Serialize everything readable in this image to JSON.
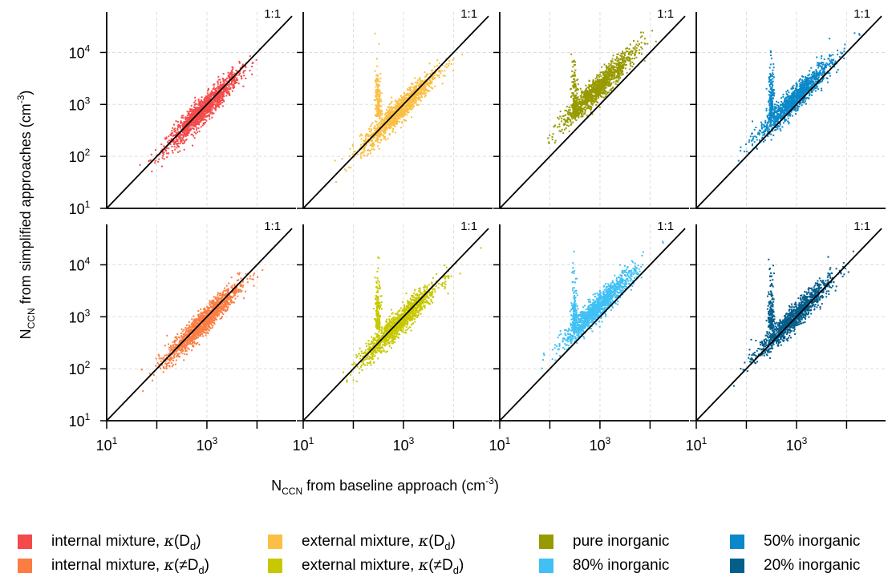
{
  "chart_data": {
    "type": "scatter",
    "x_scale": "log",
    "y_scale": "log",
    "xlim": [
      10,
      60000
    ],
    "ylim": [
      10,
      60000
    ],
    "grid": true,
    "legend_placement": "bottom",
    "shared_ylabel": {
      "main": "N",
      "sub": "CCN",
      "rest": " from simplified approaches (cm",
      "exp": "-3",
      "close": ")"
    },
    "shared_xlabel": {
      "main": "N",
      "sub": "CCN",
      "rest": " from baseline approach (cm",
      "exp": "-3",
      "close": ")"
    },
    "y_tick_labels": [
      {
        "value": 10,
        "base": "10",
        "exp": "1"
      },
      {
        "value": 100,
        "base": "10",
        "exp": "2"
      },
      {
        "value": 1000,
        "base": "10",
        "exp": "3"
      },
      {
        "value": 10000,
        "base": "10",
        "exp": "4"
      }
    ],
    "x_tick_labels": [
      {
        "value": 10,
        "base": "10",
        "exp": "1"
      },
      {
        "value": 1000,
        "base": "10",
        "exp": "3"
      }
    ],
    "x_minor_ticks": [
      100,
      10000
    ],
    "one_to_one_label": "1:1",
    "panels": [
      {
        "row": 0,
        "col": 0,
        "series": "internal mixture, κ(Dd)",
        "color": "#f44a4a",
        "center_x": 800,
        "center_y": 800,
        "spread": 0.36,
        "spike_x": null
      },
      {
        "row": 0,
        "col": 1,
        "series": "external mixture, κ(Dd)",
        "color": "#fbbf45",
        "center_x": 800,
        "center_y": 800,
        "spread": 0.38,
        "spike_x": 300
      },
      {
        "row": 0,
        "col": 2,
        "series": "pure inorganic",
        "color": "#979a00",
        "center_x": 900,
        "center_y": 2200,
        "spread": 0.36,
        "spike_x": 300
      },
      {
        "row": 0,
        "col": 3,
        "series": "50% inorganic",
        "color": "#0b88c9",
        "center_x": 900,
        "center_y": 1300,
        "spread": 0.36,
        "spike_x": 300
      },
      {
        "row": 1,
        "col": 0,
        "series": "internal mixture, κ(≠Dd)",
        "color": "#fb7d43",
        "center_x": 800,
        "center_y": 800,
        "spread": 0.36,
        "spike_x": null
      },
      {
        "row": 1,
        "col": 1,
        "series": "external mixture, κ(≠Dd)",
        "color": "#c8c800",
        "center_x": 800,
        "center_y": 800,
        "spread": 0.38,
        "spike_x": 300
      },
      {
        "row": 1,
        "col": 2,
        "series": "80% inorganic",
        "color": "#40c0f4",
        "center_x": 900,
        "center_y": 1600,
        "spread": 0.36,
        "spike_x": 300
      },
      {
        "row": 1,
        "col": 3,
        "series": "20% inorganic",
        "color": "#045e8c",
        "center_x": 850,
        "center_y": 1000,
        "spread": 0.36,
        "spike_x": 300
      }
    ],
    "legend": [
      {
        "pre": "internal mixture, ",
        "kappa": "κ",
        "open": "(",
        "neq": "",
        "D": "D",
        "sub": "d",
        "close": ")",
        "color": "#f44a4a"
      },
      {
        "pre": "external mixture, ",
        "kappa": "κ",
        "open": "(",
        "neq": "",
        "D": "D",
        "sub": "d",
        "close": ")",
        "color": "#fbbf45"
      },
      {
        "pre": "pure inorganic",
        "kappa": "",
        "open": "",
        "neq": "",
        "D": "",
        "sub": "",
        "close": "",
        "color": "#979a00"
      },
      {
        "pre": "50% inorganic",
        "kappa": "",
        "open": "",
        "neq": "",
        "D": "",
        "sub": "",
        "close": "",
        "color": "#0b88c9"
      },
      {
        "pre": "internal mixture, ",
        "kappa": "κ",
        "open": "(",
        "neq": "≠",
        "D": "D",
        "sub": "d",
        "close": ")",
        "color": "#fb7d43"
      },
      {
        "pre": "external mixture, ",
        "kappa": "κ",
        "open": "(",
        "neq": "≠",
        "D": "D",
        "sub": "d",
        "close": ")",
        "color": "#c8c800"
      },
      {
        "pre": "80% inorganic",
        "kappa": "",
        "open": "",
        "neq": "",
        "D": "",
        "sub": "",
        "close": "",
        "color": "#40c0f4"
      },
      {
        "pre": "20% inorganic",
        "kappa": "",
        "open": "",
        "neq": "",
        "D": "",
        "sub": "",
        "close": "",
        "color": "#045e8c"
      }
    ]
  }
}
